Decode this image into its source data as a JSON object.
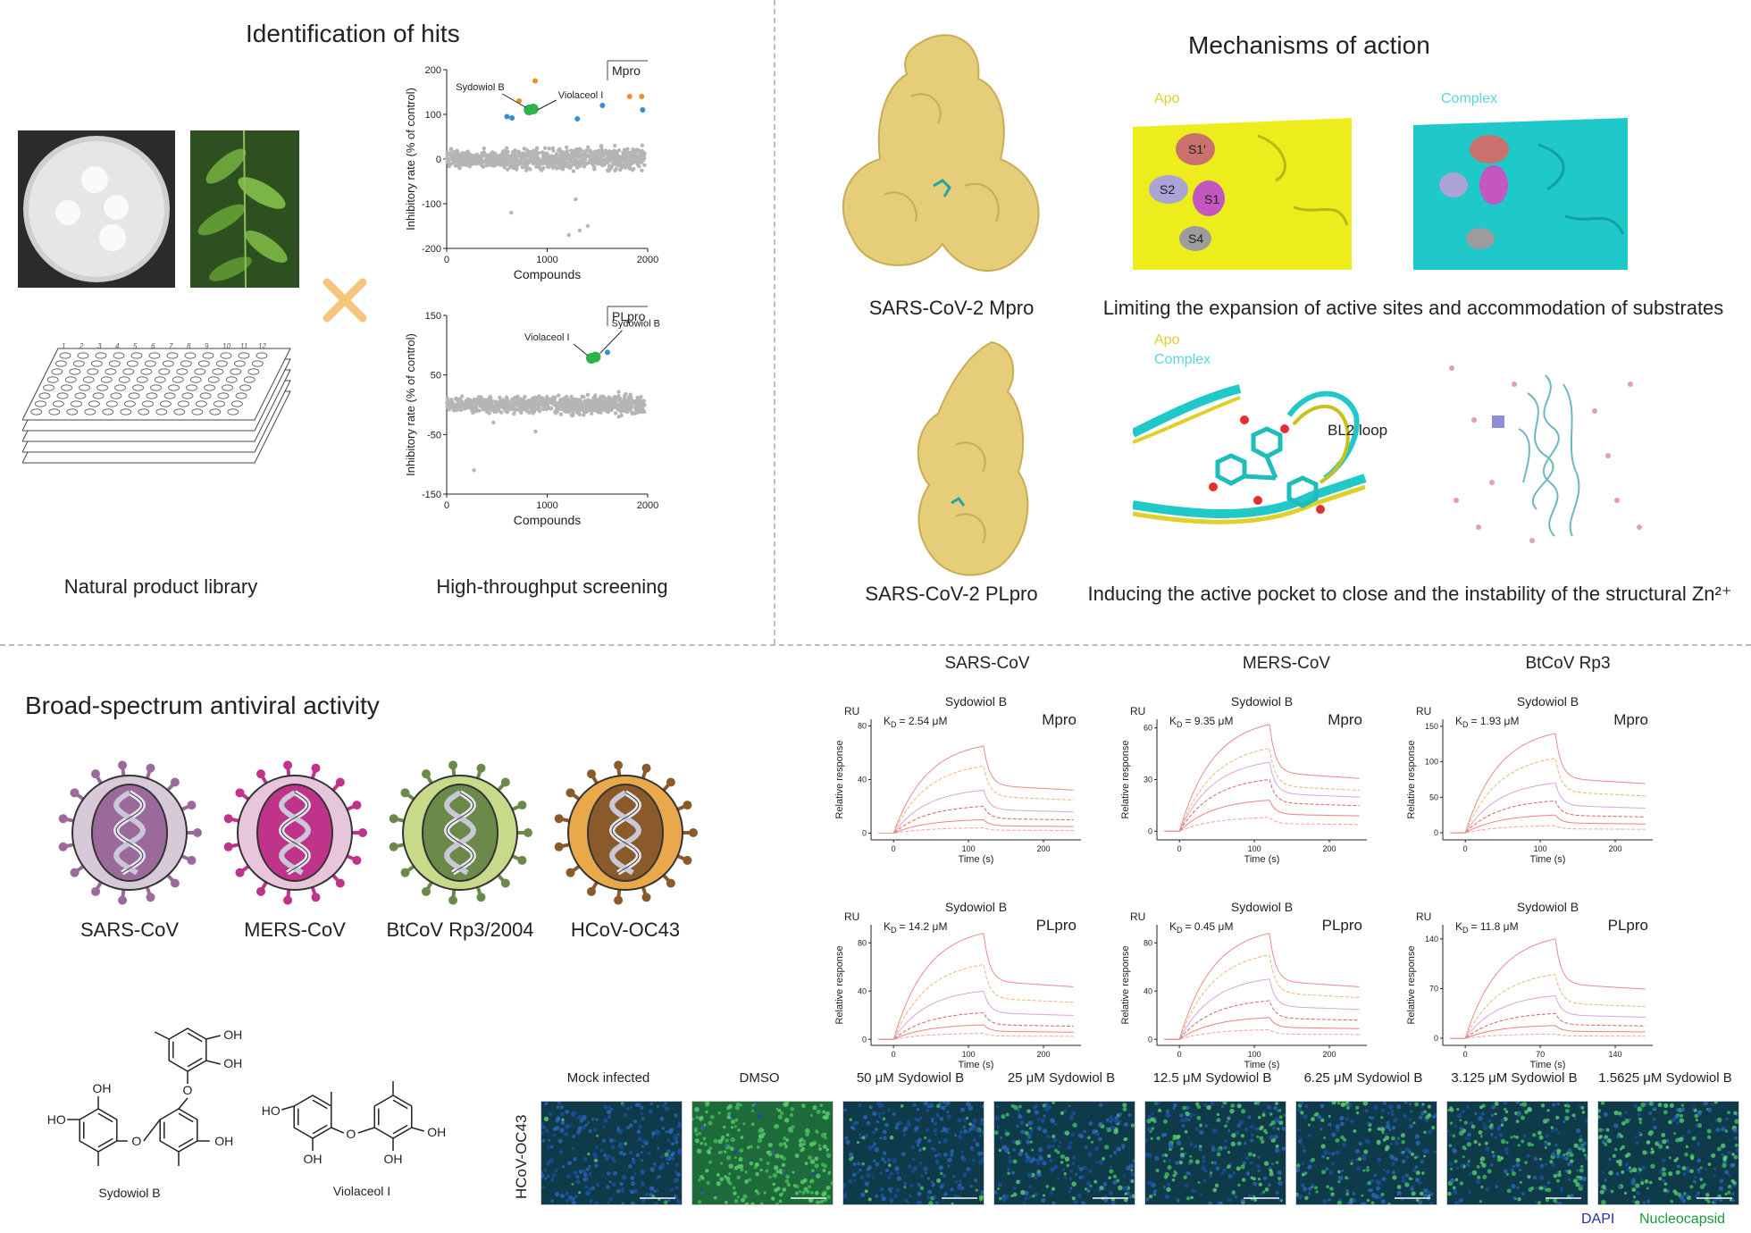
{
  "sections": {
    "identification_title": "Identification of hits",
    "mechanisms_title": "Mechanisms of action",
    "broad_title": "Broad-spectrum antiviral activity"
  },
  "identification": {
    "library_label": "Natural product library",
    "hts_label": "High-throughput screening",
    "plate_cols": [
      "1",
      "2",
      "3",
      "4",
      "5",
      "6",
      "7",
      "8",
      "9",
      "10",
      "11",
      "12"
    ]
  },
  "chart_data": [
    {
      "type": "scatter",
      "title": "Mpro",
      "xlabel": "Compounds",
      "ylabel": "Inhibitory rate (% of control)",
      "xlim": [
        0,
        2000
      ],
      "ylim": [
        -200,
        200
      ],
      "xticks": [
        "0",
        "1000",
        "2000"
      ],
      "yticks": [
        "200",
        "100",
        "0",
        "-100",
        "-200"
      ],
      "annotations": [
        "Sydowiol B",
        "Violaceol I"
      ],
      "series": [
        {
          "name": "Sydowiol B",
          "x": [
            820
          ],
          "y": [
            110
          ],
          "color": "#2db34a"
        },
        {
          "name": "Violaceol I",
          "x": [
            860
          ],
          "y": [
            112
          ],
          "color": "#2db34a"
        },
        {
          "x": [
            720,
            880,
            1820,
            1940
          ],
          "y": [
            130,
            175,
            140,
            140
          ],
          "color": "#f28c28"
        },
        {
          "x": [
            600,
            650,
            1300,
            1550,
            1950
          ],
          "y": [
            95,
            92,
            90,
            120,
            110
          ],
          "color": "#2f8fd8"
        }
      ],
      "cluster": {
        "mean": 0,
        "spread": 40,
        "outliers_low": [
          -120,
          -150,
          -90,
          -160,
          -170
        ]
      }
    },
    {
      "type": "scatter",
      "title": "PLpro",
      "xlabel": "Compounds",
      "ylabel": "Inhibitory rate (% of control)",
      "xlim": [
        0,
        2000
      ],
      "ylim": [
        -150,
        150
      ],
      "xticks": [
        "0",
        "1000",
        "2000"
      ],
      "yticks": [
        "150",
        "50",
        "-50",
        "-150"
      ],
      "annotations": [
        "Violaceol I",
        "Sydowiol B"
      ],
      "series": [
        {
          "name": "Violaceol I",
          "x": [
            1440
          ],
          "y": [
            78
          ],
          "color": "#2db34a"
        },
        {
          "name": "Sydowiol B",
          "x": [
            1480
          ],
          "y": [
            80
          ],
          "color": "#2db34a"
        },
        {
          "x": [
            1600
          ],
          "y": [
            88
          ],
          "color": "#2f8fd8"
        }
      ],
      "cluster": {
        "mean": 0,
        "spread": 25,
        "outliers_low": [
          -30,
          -45,
          -110
        ]
      }
    },
    {
      "type": "line",
      "panel": "SARS-CoV Mpro",
      "compound": "Sydowiol B",
      "target": "Mpro",
      "kd_prefix": "K",
      "kd_sub": "D",
      "kd": "= 2.54 μM",
      "xlabel": "Time (s)",
      "ylabel": "Relative response",
      "unit": "RU",
      "xticks": [
        "0",
        "100",
        "200"
      ],
      "yticks": [
        "80",
        "40",
        "0"
      ],
      "xlim": [
        -30,
        250
      ],
      "ylim": [
        -5,
        85
      ],
      "plateaus": [
        65,
        50,
        32,
        20,
        10,
        4
      ]
    },
    {
      "type": "line",
      "panel": "MERS-CoV Mpro",
      "compound": "Sydowiol B",
      "target": "Mpro",
      "kd_prefix": "K",
      "kd_sub": "D",
      "kd": "= 9.35 μM",
      "xlabel": "Time (s)",
      "ylabel": "Relative response",
      "unit": "RU",
      "xticks": [
        "0",
        "100",
        "200"
      ],
      "yticks": [
        "60",
        "30",
        "0"
      ],
      "xlim": [
        -30,
        250
      ],
      "ylim": [
        -5,
        65
      ],
      "plateaus": [
        62,
        48,
        40,
        30,
        18,
        8
      ]
    },
    {
      "type": "line",
      "panel": "BtCoV Rp3 Mpro",
      "compound": "Sydowiol B",
      "target": "Mpro",
      "kd_prefix": "K",
      "kd_sub": "D",
      "kd": "= 1.93 μM",
      "xlabel": "Time (s)",
      "ylabel": "Relative response",
      "unit": "RU",
      "xticks": [
        "0",
        "100",
        "200"
      ],
      "yticks": [
        "150",
        "100",
        "50",
        "0"
      ],
      "xlim": [
        -30,
        250
      ],
      "ylim": [
        -10,
        160
      ],
      "plateaus": [
        140,
        105,
        70,
        45,
        25,
        10
      ]
    },
    {
      "type": "line",
      "panel": "SARS-CoV PLpro",
      "compound": "Sydowiol B",
      "target": "PLpro",
      "kd_prefix": "K",
      "kd_sub": "D",
      "kd": "= 14.2 μM",
      "xlabel": "Time (s)",
      "ylabel": "Relative response",
      "unit": "RU",
      "xticks": [
        "0",
        "100",
        "200"
      ],
      "yticks": [
        "80",
        "40",
        "0"
      ],
      "xlim": [
        -30,
        250
      ],
      "ylim": [
        -5,
        95
      ],
      "plateaus": [
        88,
        62,
        40,
        22,
        12,
        5
      ]
    },
    {
      "type": "line",
      "panel": "MERS-CoV PLpro",
      "compound": "Sydowiol B",
      "target": "PLpro",
      "kd_prefix": "K",
      "kd_sub": "D",
      "kd": "= 0.45 μM",
      "xlabel": "Time (s)",
      "ylabel": "Relative response",
      "unit": "RU",
      "xticks": [
        "0",
        "100",
        "200"
      ],
      "yticks": [
        "80",
        "40",
        "0"
      ],
      "xlim": [
        -30,
        250
      ],
      "ylim": [
        -5,
        95
      ],
      "plateaus": [
        88,
        70,
        50,
        32,
        18,
        8
      ]
    },
    {
      "type": "line",
      "panel": "BtCoV Rp3 PLpro",
      "compound": "Sydowiol B",
      "target": "PLpro",
      "kd_prefix": "K",
      "kd_sub": "D",
      "kd": "= 11.8 μM",
      "xlabel": "Time (s)",
      "ylabel": "Relative response",
      "unit": "RU",
      "xticks": [
        "0",
        "70",
        "140"
      ],
      "yticks": [
        "140",
        "70",
        "0"
      ],
      "xlim": [
        -30,
        250
      ],
      "ylim": [
        -10,
        160
      ],
      "plateaus": [
        140,
        90,
        60,
        35,
        18,
        6
      ]
    }
  ],
  "mechanisms": {
    "mpro_label": "SARS-CoV-2 Mpro",
    "plpro_label": "SARS-CoV-2 PLpro",
    "apo": "Apo",
    "complex": "Complex",
    "sites": [
      "S1'",
      "S2",
      "S1",
      "S4"
    ],
    "loop_label": "BL2 loop",
    "mpro_caption": "Limiting the expansion of active sites and accommodation of substrates",
    "plpro_caption": "Inducing the active pocket to close and the instability of the structural Zn²⁺"
  },
  "spr": {
    "viruses": [
      "SARS-CoV",
      "MERS-CoV",
      "BtCoV Rp3"
    ]
  },
  "broad": {
    "viruses": [
      {
        "label": "SARS-CoV",
        "color": "#9b6a9a",
        "rim": "#d8c9d8"
      },
      {
        "label": "MERS-CoV",
        "color": "#c0338a",
        "rim": "#e7c6dc"
      },
      {
        "label": "BtCoV Rp3/2004",
        "color": "#6b8a4a",
        "rim": "#c8d98a"
      },
      {
        "label": "HCoV-OC43",
        "color": "#8a5a2a",
        "rim": "#e9a94a"
      }
    ],
    "compounds": [
      {
        "name": "Sydowiol B"
      },
      {
        "name": "Violaceol I"
      }
    ],
    "atoms": {
      "oh": "OH",
      "ho": "HO",
      "o": "O"
    }
  },
  "microscopy": {
    "row_label": "HCoV-OC43",
    "panels": [
      {
        "label": "Mock infected",
        "green": 0.05
      },
      {
        "label": "DMSO",
        "green": 0.95
      },
      {
        "label": "50 μM Sydowiol B",
        "green": 0.1
      },
      {
        "label": "25 μM Sydowiol B",
        "green": 0.35
      },
      {
        "label": "12.5 μM Sydowiol B",
        "green": 0.45
      },
      {
        "label": "6.25 μM Sydowiol B",
        "green": 0.4
      },
      {
        "label": "3.125 μM Sydowiol B",
        "green": 0.55
      },
      {
        "label": "1.5625 μM Sydowiol B",
        "green": 0.6
      }
    ],
    "legend_dapi": "DAPI",
    "legend_np": "Nucleocapsid"
  },
  "colors": {
    "protein_gold": "#e8cf7c",
    "apo_yellow": "#eeee1a",
    "complex_cyan": "#21c8c8",
    "green_hit": "#2db34a",
    "orange": "#f28c28",
    "dapi_blue": "#2a2ab0",
    "np_green": "#1a9a3a"
  }
}
